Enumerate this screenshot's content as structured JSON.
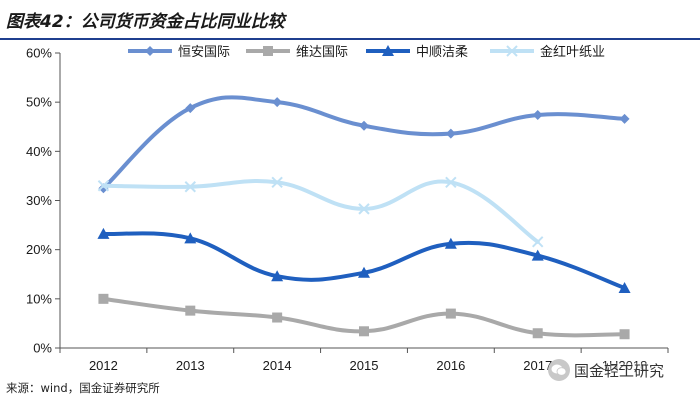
{
  "title": "图表42：公司货币资金占比同业比较",
  "source": "来源：wind，国金证券研究所",
  "watermark": "国金轻工研究",
  "chart_data": {
    "type": "line",
    "smooth": true,
    "categories": [
      "2012",
      "2013",
      "2014",
      "2015",
      "2016",
      "2017",
      "1H2018"
    ],
    "ylim": [
      0,
      60
    ],
    "yticks": [
      0,
      10,
      20,
      30,
      40,
      50,
      60
    ],
    "ytick_labels": [
      "0%",
      "10%",
      "20%",
      "30%",
      "40%",
      "50%",
      "60%"
    ],
    "ylabel": "",
    "xlabel": "",
    "grid": false,
    "legend_position": "top",
    "series": [
      {
        "name": "恒安国际",
        "color": "#6a8fd0",
        "marker": "diamond",
        "width": 4,
        "values": [
          32.5,
          48.8,
          50.0,
          45.2,
          43.6,
          47.4,
          46.6
        ]
      },
      {
        "name": "维达国际",
        "color": "#a9a9a9",
        "marker": "square",
        "width": 4,
        "values": [
          10.0,
          7.6,
          6.2,
          3.4,
          7.0,
          3.0,
          2.8
        ]
      },
      {
        "name": "中顺洁柔",
        "color": "#1f5fbf",
        "marker": "triangle",
        "width": 4,
        "values": [
          23.2,
          22.3,
          14.6,
          15.3,
          21.2,
          18.8,
          12.2
        ]
      },
      {
        "name": "金红叶纸业",
        "color": "#bfe1f5",
        "marker": "x",
        "width": 4,
        "values": [
          33.0,
          32.8,
          33.7,
          28.3,
          33.7,
          21.6,
          null
        ]
      }
    ]
  }
}
